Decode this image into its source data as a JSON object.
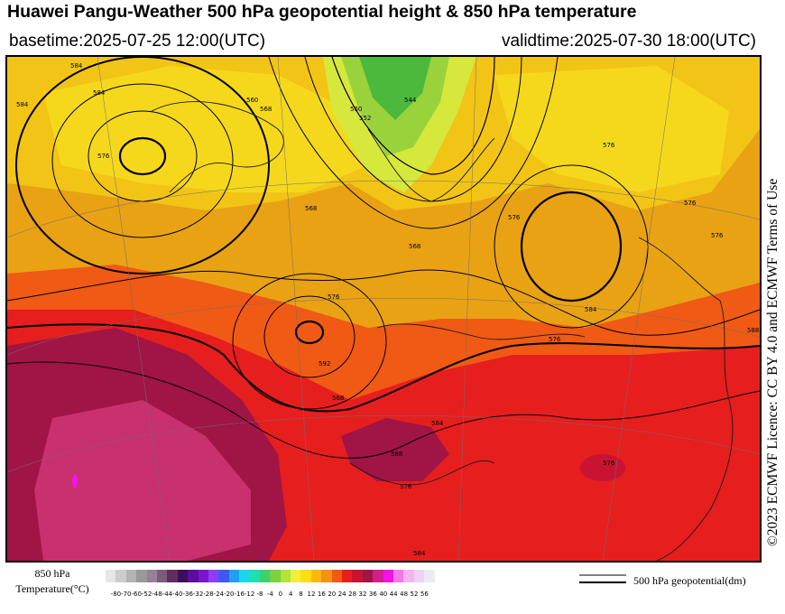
{
  "header": {
    "title": "Huawei Pangu-Weather 500 hPa geopotential height & 850 hPa temperature",
    "basetime": "basetime:2025-07-25 12:00(UTC)",
    "validtime": "validtime:2025-07-30 18:00(UTC)"
  },
  "licence": "©2023 ECMWF Licence: CC BY 4.0 and ECMWF Terms of Use",
  "colorbar": {
    "title_line1": "850 hPa",
    "title_line2": "Temperature(°C)",
    "ticks": [
      "-80",
      "-70",
      "-60",
      "-52",
      "-48",
      "-44",
      "-40",
      "-36",
      "-32",
      "-28",
      "-24",
      "-20",
      "-16",
      "-12",
      "-8",
      "-4",
      "0",
      "4",
      "8",
      "12",
      "16",
      "20",
      "24",
      "28",
      "32",
      "36",
      "40",
      "44",
      "48",
      "52",
      "56"
    ],
    "colors": [
      "#e6e6e6",
      "#cccccc",
      "#b3b3b3",
      "#999999",
      "#9a7f99",
      "#7e5a7e",
      "#5c2f5c",
      "#3d0f5a",
      "#5a0ea0",
      "#7a16d0",
      "#8f3cf2",
      "#3c5af0",
      "#1ea0f0",
      "#18d8f0",
      "#1ee0b0",
      "#3cd270",
      "#7ad23c",
      "#b4e23c",
      "#f0f03c",
      "#ffde14",
      "#ffb80a",
      "#f59114",
      "#f05a14",
      "#e61e1e",
      "#c81432",
      "#a01446",
      "#d21e8c",
      "#f014e6",
      "#f578e6",
      "#f5b4f0",
      "#f0d2f5",
      "#ebebf0"
    ]
  },
  "geo_legend": "500 hPa geopotential(dm)",
  "map": {
    "contour_labels": [
      "584",
      "584",
      "576",
      "568",
      "560",
      "576",
      "576",
      "568",
      "544",
      "552",
      "560",
      "584",
      "584",
      "576",
      "568",
      "592",
      "588",
      "576",
      "576",
      "584",
      "576",
      "588",
      "584",
      "568",
      "576",
      "576"
    ]
  }
}
